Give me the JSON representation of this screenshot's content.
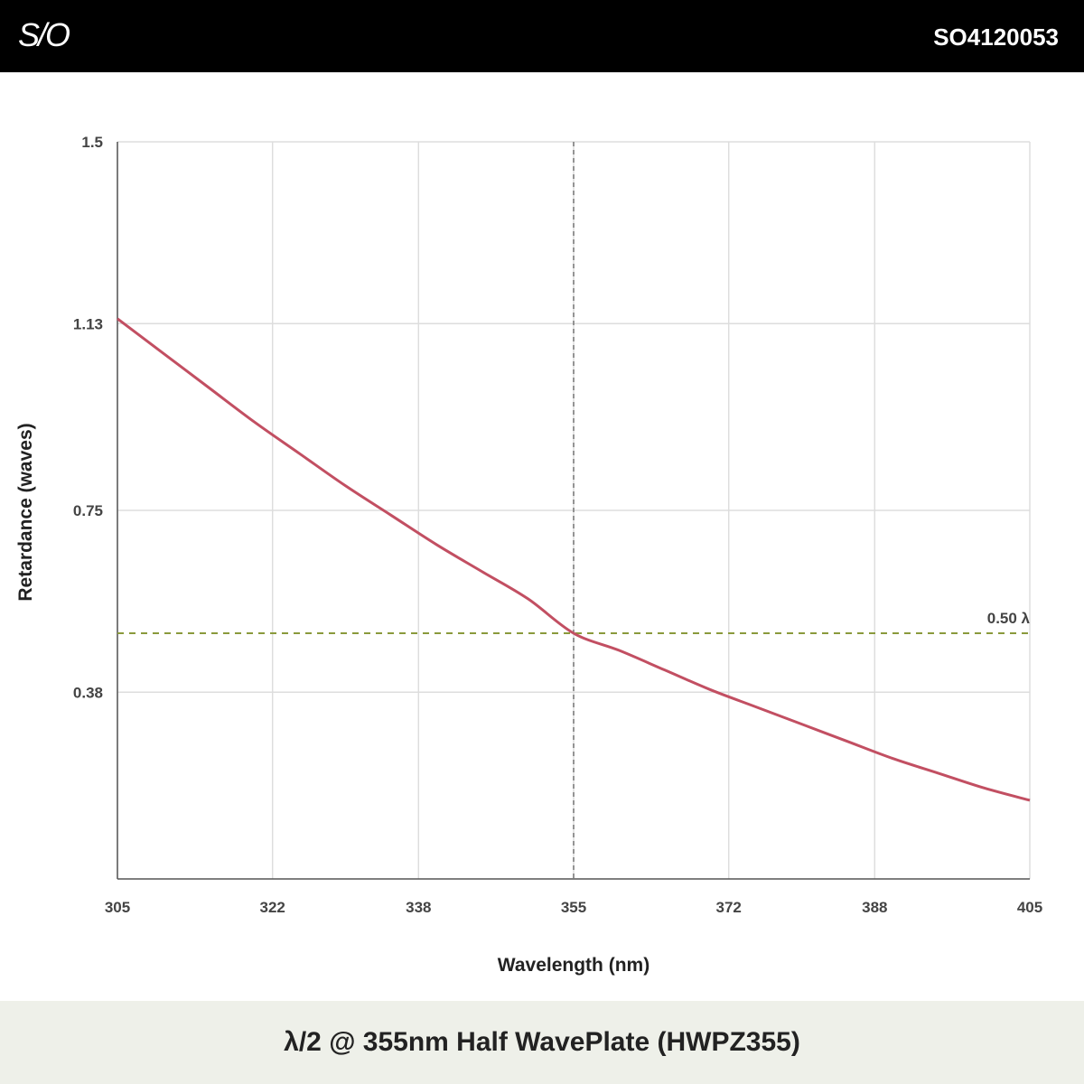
{
  "header": {
    "logo_text": "S/O",
    "product_code": "SO4120053"
  },
  "footer": {
    "title": "λ/2 @ 355nm Half WavePlate (HWPZ355)"
  },
  "colors": {
    "curve": "#c24f62",
    "reference_line": "#8a9a3c",
    "grid": "#dddddd",
    "header_bg": "#000000",
    "footer_bg": "#eef0e9"
  },
  "chart_data": {
    "type": "line",
    "xlabel": "Wavelength (nm)",
    "ylabel": "Retardance (waves)",
    "xlim": [
      305,
      405
    ],
    "ylim": [
      0,
      1.5
    ],
    "x_ticks": [
      305,
      322,
      338,
      355,
      372,
      388,
      405
    ],
    "x_tick_labels": [
      "305",
      "322",
      "338",
      "355",
      "372",
      "388",
      "405"
    ],
    "y_ticks": [
      0.38,
      0.75,
      1.13,
      1.5
    ],
    "y_tick_labels": [
      "0.38",
      "0.75",
      "1.13",
      "1.5"
    ],
    "grid": true,
    "series": [
      {
        "x": [
          305,
          310,
          315,
          320,
          325,
          330,
          335,
          340,
          345,
          350,
          355,
          360,
          365,
          370,
          375,
          380,
          385,
          390,
          395,
          400,
          405
        ],
        "y": [
          1.14,
          1.07,
          1.0,
          0.93,
          0.865,
          0.8,
          0.74,
          0.68,
          0.625,
          0.57,
          0.5,
          0.465,
          0.425,
          0.385,
          0.35,
          0.315,
          0.28,
          0.245,
          0.215,
          0.185,
          0.16
        ]
      }
    ],
    "reference_lines": [
      {
        "orientation": "horizontal",
        "value": 0.5,
        "label": "0.50 λ",
        "style": "dashed"
      },
      {
        "orientation": "vertical",
        "value": 355,
        "style": "dashed"
      }
    ]
  }
}
